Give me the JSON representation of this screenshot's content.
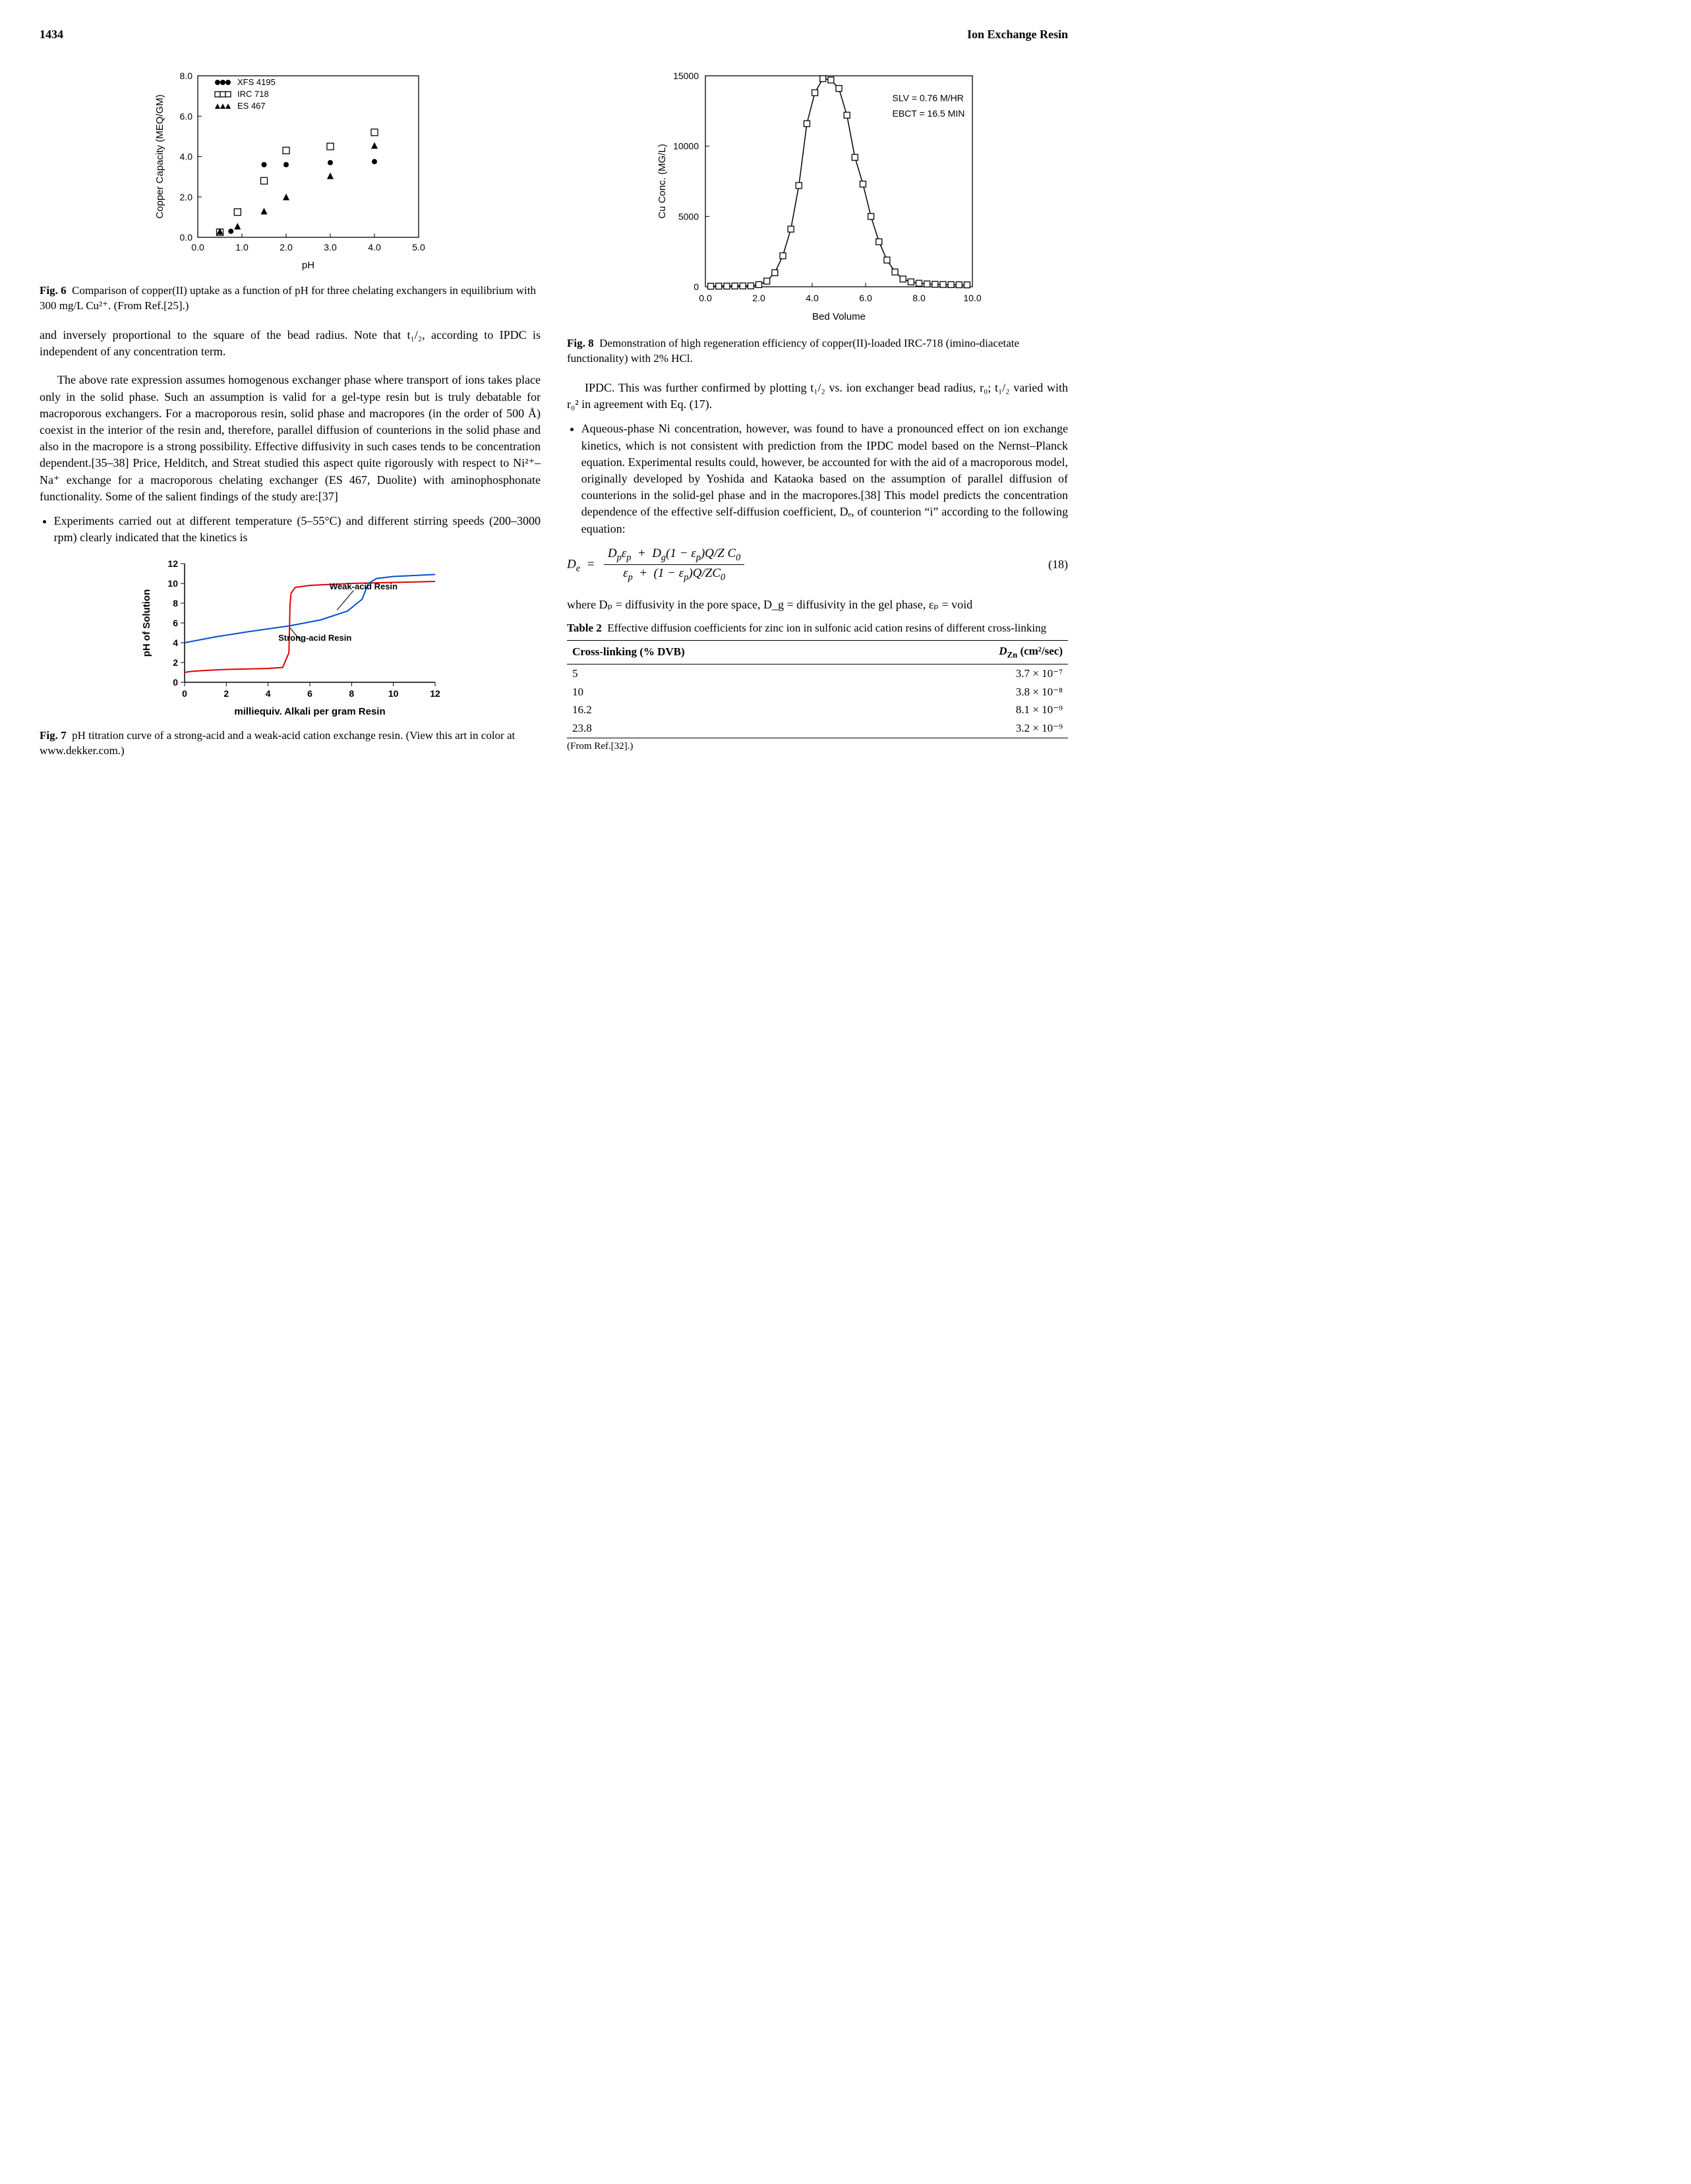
{
  "header": {
    "page_number": "1434",
    "running_title": "Ion Exchange Resin"
  },
  "fig6": {
    "title": "Copper Capacity vs pH",
    "caption": "Comparison of copper(II) uptake as a function of pH for three chelating exchangers in equilibrium with 300 mg/L Cu²⁺. (From Ref.[25].)",
    "caption_prefix": "Fig. 6",
    "xlabel": "pH",
    "ylabel": "Copper Capacity (MEQ/GM)",
    "xlim": [
      0,
      5
    ],
    "ylim": [
      0,
      8
    ],
    "xticks": [
      0.0,
      1.0,
      2.0,
      3.0,
      4.0,
      5.0
    ],
    "yticks": [
      0.0,
      2.0,
      4.0,
      6.0,
      8.0
    ],
    "legend": [
      {
        "label": "XFS 4195",
        "marker": "filled-circle",
        "color": "#000"
      },
      {
        "label": "IRC 718",
        "marker": "open-square",
        "color": "#000"
      },
      {
        "label": "ES 467",
        "marker": "filled-triangle",
        "color": "#000"
      }
    ],
    "series": {
      "xfs4195": [
        [
          0.5,
          0.25
        ],
        [
          0.75,
          0.3
        ],
        [
          1.5,
          3.6
        ],
        [
          2.0,
          3.6
        ],
        [
          3.0,
          3.7
        ],
        [
          4.0,
          3.75
        ]
      ],
      "irc718": [
        [
          0.5,
          0.25
        ],
        [
          0.9,
          1.25
        ],
        [
          1.5,
          2.8
        ],
        [
          2.0,
          4.3
        ],
        [
          3.0,
          4.5
        ],
        [
          4.0,
          5.2
        ]
      ],
      "es467": [
        [
          0.5,
          0.3
        ],
        [
          0.9,
          0.55
        ],
        [
          1.5,
          1.3
        ],
        [
          2.0,
          2.0
        ],
        [
          3.0,
          3.05
        ],
        [
          4.0,
          4.55
        ]
      ]
    },
    "background_color": "#ffffff",
    "tick_fontsize": 14,
    "label_fontsize": 15
  },
  "fig7": {
    "caption": "pH titration curve of a strong-acid and a weak-acid cation exchange resin. (View this art in color at www.dekker.com.)",
    "caption_prefix": "Fig. 7",
    "xlabel": "milliequiv. Alkali per gram Resin",
    "ylabel": "pH of Solution",
    "xlim": [
      0,
      12
    ],
    "ylim": [
      0,
      12
    ],
    "xticks": [
      0,
      2,
      4,
      6,
      8,
      10,
      12
    ],
    "yticks": [
      0,
      2,
      4,
      6,
      8,
      10,
      12
    ],
    "weak_label": "Weak-acid Resin",
    "strong_label": "Strong-acid Resin",
    "strong_series": [
      [
        0,
        1
      ],
      [
        0.3,
        1.1
      ],
      [
        1,
        1.2
      ],
      [
        2,
        1.3
      ],
      [
        3,
        1.35
      ],
      [
        4,
        1.4
      ],
      [
        4.7,
        1.5
      ],
      [
        5,
        3
      ],
      [
        5.05,
        7.8
      ],
      [
        5.1,
        9
      ],
      [
        5.3,
        9.6
      ],
      [
        6,
        9.8
      ],
      [
        8,
        10
      ],
      [
        10,
        10.1
      ],
      [
        12,
        10.2
      ]
    ],
    "weak_series": [
      [
        0,
        4.0
      ],
      [
        0.5,
        4.2
      ],
      [
        1.5,
        4.6
      ],
      [
        3,
        5.1
      ],
      [
        5,
        5.7
      ],
      [
        6.5,
        6.3
      ],
      [
        7.8,
        7.2
      ],
      [
        8.5,
        8.4
      ],
      [
        8.8,
        10.0
      ],
      [
        9.2,
        10.5
      ],
      [
        10,
        10.7
      ],
      [
        12,
        10.9
      ]
    ],
    "strong_color": "#e00000",
    "weak_color": "#0050d0",
    "tick_fontsize": 14,
    "label_fontsize": 15
  },
  "fig8": {
    "caption": "Demonstration of high regeneration efficiency of copper(II)-loaded IRC-718 (imino-diacetate functionality) with 2% HCl.",
    "caption_prefix": "Fig. 8",
    "xlabel": "Bed Volume",
    "ylabel": "Cu Conc. (MG/L)",
    "xlim": [
      0,
      10
    ],
    "ylim": [
      0,
      15000
    ],
    "xticks": [
      0.0,
      2.0,
      4.0,
      6.0,
      8.0,
      10.0
    ],
    "yticks": [
      0,
      5000,
      10000,
      15000
    ],
    "annotation": [
      "SLV = 0.76 M/HR",
      "EBCT = 16.5 MIN"
    ],
    "series": [
      [
        0.2,
        40
      ],
      [
        0.5,
        45
      ],
      [
        0.8,
        48
      ],
      [
        1.1,
        55
      ],
      [
        1.4,
        60
      ],
      [
        1.7,
        65
      ],
      [
        2.0,
        150
      ],
      [
        2.3,
        400
      ],
      [
        2.6,
        1000
      ],
      [
        2.9,
        2200
      ],
      [
        3.2,
        4100
      ],
      [
        3.5,
        7200
      ],
      [
        3.8,
        11600
      ],
      [
        4.1,
        13800
      ],
      [
        4.4,
        14800
      ],
      [
        4.7,
        14700
      ],
      [
        5.0,
        14100
      ],
      [
        5.3,
        12200
      ],
      [
        5.6,
        9200
      ],
      [
        5.9,
        7300
      ],
      [
        6.2,
        5000
      ],
      [
        6.5,
        3200
      ],
      [
        6.8,
        1900
      ],
      [
        7.1,
        1050
      ],
      [
        7.4,
        550
      ],
      [
        7.7,
        350
      ],
      [
        8.0,
        250
      ],
      [
        8.3,
        200
      ],
      [
        8.6,
        180
      ],
      [
        8.9,
        160
      ],
      [
        9.2,
        150
      ],
      [
        9.5,
        140
      ],
      [
        9.8,
        135
      ]
    ],
    "marker": "open-square",
    "line_color": "#000",
    "tick_fontsize": 14,
    "label_fontsize": 15
  },
  "text": {
    "para1_cont": "and inversely proportional to the square of the bead radius. Note that t₁/₂, according to IPDC is independent of any concentration term.",
    "para2": "The above rate expression assumes homogenous exchanger phase where transport of ions takes place only in the solid phase. Such an assumption is valid for a gel-type resin but is truly debatable for macroporous exchangers. For a macroporous resin, solid phase and macropores (in the order of 500 Å) coexist in the interior of the resin and, therefore, parallel diffusion of counterions in the solid phase and also in the macropore is a strong possibility. Effective diffusivity in such cases tends to be concentration dependent.[35–38] Price, Helditch, and Streat studied this aspect quite rigorously with respect to Ni²⁺–Na⁺ exchange for a macroporous chelating exchanger (ES 467, Duolite) with aminophosphonate functionality. Some of the salient findings of the study are:[37]",
    "bullet1": "Experiments carried out at different temperature (5–55°C) and different stirring speeds (200–3000 rpm) clearly indicated that the kinetics is",
    "bullet1_cont": "IPDC. This was further confirmed by plotting t₁/₂ vs. ion exchanger bead radius, r₀; t₁/₂ varied with r₀² in agreement with Eq. (17).",
    "bullet2": "Aqueous-phase Ni concentration, however, was found to have a pronounced effect on ion exchange kinetics, which is not consistent with prediction from the IPDC model based on the Nernst–Planck equation. Experimental results could, however, be accounted for with the aid of a macroporous model, originally developed by Yoshida and Kataoka based on the assumption of parallel diffusion of counterions in the solid-gel phase and in the macropores.[38] This model predicts the concentration dependence of the effective self-diffusion coefficient, Dₑ, of counterion “i” according to the following equation:",
    "eq18_num": "(18)",
    "para_where": "where Dₚ = diffusivity in the pore space, D_g = diffusivity in the gel phase, εₚ = void"
  },
  "table2": {
    "caption_prefix": "Table 2",
    "caption": "Effective diffusion coefficients for zinc ion in sulfonic acid cation resins of different cross-linking",
    "columns": [
      "Cross-linking (% DVB)",
      "D_{Zn} (cm²/sec)"
    ],
    "rows": [
      [
        "5",
        "3.7 × 10⁻⁷"
      ],
      [
        "10",
        "3.8 × 10⁻⁸"
      ],
      [
        "16.2",
        "8.1 × 10⁻⁹"
      ],
      [
        "23.8",
        "3.2 × 10⁻⁹"
      ]
    ],
    "note": "(From Ref.[32].)"
  }
}
